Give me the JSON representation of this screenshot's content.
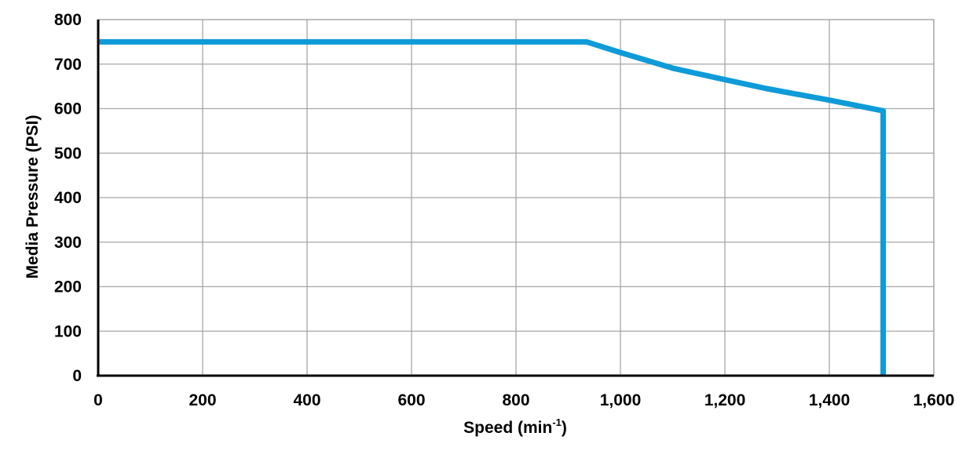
{
  "chart_data": {
    "type": "line",
    "title": "",
    "xlabel": "Speed (min",
    "xlabel_superscript": "-1",
    "xlabel_suffix": ")",
    "ylabel": "Media Pressure (PSI)",
    "xlim": [
      0,
      1600
    ],
    "ylim": [
      0,
      800
    ],
    "x_ticks": [
      0,
      200,
      400,
      600,
      800,
      1000,
      1200,
      1400,
      1600
    ],
    "x_tick_labels": [
      "0",
      "200",
      "400",
      "600",
      "800",
      "1,000",
      "1,200",
      "1,400",
      "1,600"
    ],
    "y_ticks": [
      0,
      100,
      200,
      300,
      400,
      500,
      600,
      700,
      800
    ],
    "y_tick_labels": [
      "0",
      "100",
      "200",
      "300",
      "400",
      "500",
      "600",
      "700",
      "800"
    ],
    "grid": true,
    "legend": "none",
    "series": [
      {
        "color": "#0e9bd8",
        "x": [
          0,
          935,
          1000,
          1100,
          1200,
          1280,
          1400,
          1503,
          1503
        ],
        "y": [
          750,
          750,
          726,
          691,
          665,
          645,
          619,
          595,
          0
        ]
      }
    ]
  }
}
